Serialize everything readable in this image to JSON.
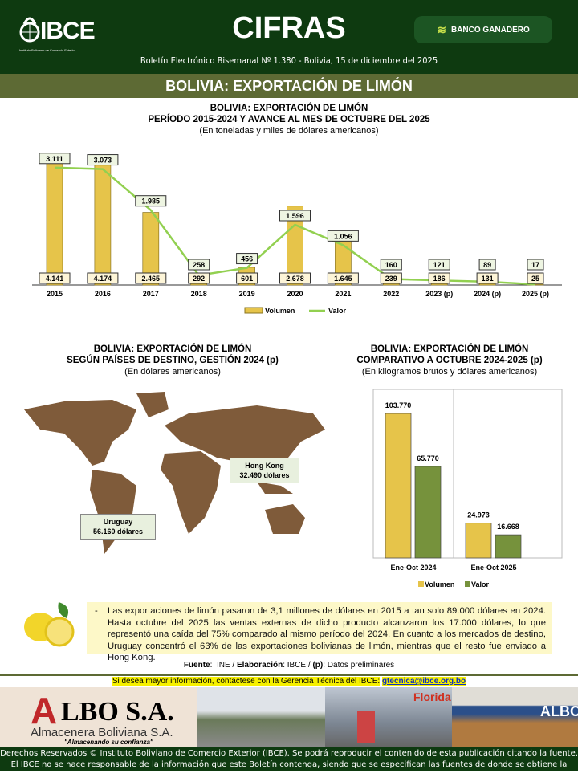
{
  "header": {
    "logo_text": "IBCE",
    "logo_subtitle": "Instituto Boliviano de Comercio Exterior",
    "title": "CIFRAS",
    "sponsor": "BANCO GANADERO",
    "bulletin": "Boletín Electrónico Bisemanal Nº 1.380 - Bolivia,  15 de diciembre del 2025"
  },
  "band_title": "BOLIVIA: EXPORTACIÓN DE LIMÓN",
  "colors": {
    "header": "#0e3a10",
    "band": "#5d6a34",
    "volumen": "#e6c44a",
    "valor": "#92d050",
    "valor_bar": "#76923c"
  },
  "chart_data": [
    {
      "type": "bar",
      "title": "BOLIVIA: EXPORTACIÓN DE LIMÓN",
      "title2": "PERÍODO 2015-2024 Y AVANCE AL MES DE OCTUBRE DEL 2025",
      "subtitle": "(En toneladas y miles de dólares americanos)",
      "categories": [
        "2015",
        "2016",
        "2017",
        "2018",
        "2019",
        "2020",
        "2021",
        "2022",
        "2023 (p)",
        "2024 (p)",
        "2025 (p)"
      ],
      "series": [
        {
          "name": "Volumen",
          "type": "bar",
          "values": [
            4141,
            4174,
            2465,
            292,
            601,
            2678,
            1645,
            239,
            186,
            131,
            25
          ],
          "labels": [
            "4.141",
            "4.174",
            "2.465",
            "292",
            "601",
            "2.678",
            "1.645",
            "239",
            "186",
            "131",
            "25"
          ]
        },
        {
          "name": "Valor",
          "type": "line",
          "values": [
            3111,
            3073,
            1985,
            258,
            456,
            1596,
            1056,
            160,
            121,
            89,
            17
          ],
          "labels": [
            "3.111",
            "3.073",
            "1.985",
            "258",
            "456",
            "1.596",
            "1.056",
            "160",
            "121",
            "89",
            "17"
          ]
        }
      ],
      "legend": "bottom"
    },
    {
      "type": "map",
      "title": "BOLIVIA: EXPORTACIÓN DE LIMÓN",
      "title2": "SEGÚN PAÍSES DE DESTINO, GESTIÓN 2024 (p)",
      "subtitle": "(En dólares americanos)",
      "callouts": [
        {
          "country": "Hong Kong",
          "value": "32.490 dólares"
        },
        {
          "country": "Uruguay",
          "value": "56.160 dólares"
        }
      ]
    },
    {
      "type": "bar",
      "title": "BOLIVIA: EXPORTACIÓN DE LIMÓN",
      "title2": "COMPARATIVO A OCTUBRE 2024-2025 (p)",
      "subtitle": "(En kilogramos brutos y dólares americanos)",
      "categories": [
        "Ene-Oct 2024",
        "Ene-Oct 2025"
      ],
      "series": [
        {
          "name": "Volumen",
          "values": [
            103770,
            24973
          ],
          "labels": [
            "103.770",
            "24.973"
          ]
        },
        {
          "name": "Valor",
          "values": [
            65770,
            16668
          ],
          "labels": [
            "65.770",
            "16.668"
          ]
        }
      ],
      "legend": "bottom"
    }
  ],
  "note": "Las exportaciones de limón pasaron de 3,1 millones de dólares en 2015 a tan solo 89.000 dólares en 2024. Hasta octubre del 2025 las ventas externas de dicho producto alcanzaron los 17.000 dólares, lo que representó una caída del 75% comparado al mismo período del 2024. En cuanto a los mercados de destino, Uruguay concentró el 63% de las exportaciones bolivianas de limón, mientras que el resto fue enviado a Hong Kong.",
  "source": {
    "fuente_label": "Fuente",
    "fuente": "INE",
    "elab_label": "Elaboración",
    "elab": "IBCE",
    "p_label": "(p)",
    "p": "Datos preliminares"
  },
  "contact": {
    "text": "Si desea mayor información, contáctese con la Gerencia Técnica del IBCE:",
    "email": "gtecnica@ibce.org.bo"
  },
  "ad": {
    "brand": "LBO S.A.",
    "brand_initial": "A",
    "name": "Almacenera Boliviana S.A.",
    "slogan": "\"Almacenando su confianza\"",
    "sign1": "Florida",
    "sign2": "ALBO"
  },
  "footer": {
    "line1": "Derechos Reservados © Instituto Boliviano de Comercio Exterior (IBCE). Se podrá reproducir el contenido de esta publicación citando la fuente.",
    "line2": "El IBCE no se hace responsable de la información que este Boletín contenga, siendo que se especifican las fuentes de donde se obtiene la misma."
  }
}
